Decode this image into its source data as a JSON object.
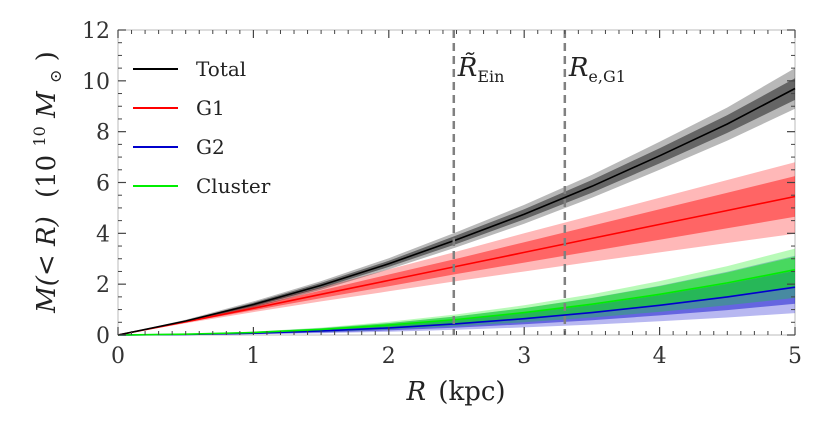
{
  "chart_data": {
    "type": "area",
    "title": "",
    "xlabel": "R (kpc)",
    "xlabel_parts": {
      "var": "R",
      "unit": "(kpc)"
    },
    "ylabel": "M(< R) (10^10 M⊙)",
    "ylabel_parts": {
      "expr": "M(< R)",
      "scale_base": "(10",
      "scale_exp": "10",
      "unit": "M",
      "unit_sub": "⊙",
      "close": ")"
    },
    "xlim": [
      0,
      5
    ],
    "ylim": [
      0,
      12
    ],
    "xticks": [
      0,
      1,
      2,
      3,
      4,
      5
    ],
    "yticks": [
      0,
      2,
      4,
      6,
      8,
      10,
      12
    ],
    "legend_position": "top-left",
    "x": [
      0,
      0.5,
      1,
      1.5,
      2,
      2.5,
      3,
      3.5,
      4,
      4.5,
      5
    ],
    "series": [
      {
        "name": "Total",
        "color": "#000000",
        "median": [
          0,
          0.55,
          1.2,
          1.95,
          2.8,
          3.75,
          4.75,
          5.85,
          7.05,
          8.3,
          9.7
        ],
        "band_inner": {
          "low": [
            0,
            0.53,
            1.13,
            1.85,
            2.68,
            3.58,
            4.55,
            5.6,
            6.75,
            7.95,
            9.25
          ],
          "high": [
            0,
            0.57,
            1.27,
            2.05,
            2.92,
            3.92,
            4.95,
            6.1,
            7.35,
            8.65,
            10.1
          ]
        },
        "band_outer": {
          "low": [
            0,
            0.5,
            1.08,
            1.78,
            2.58,
            3.45,
            4.38,
            5.4,
            6.5,
            7.65,
            8.9
          ],
          "high": [
            0,
            0.6,
            1.32,
            2.12,
            3.02,
            4.05,
            5.12,
            6.3,
            7.6,
            8.95,
            10.5
          ]
        }
      },
      {
        "name": "G1",
        "color": "#ff0000",
        "median": [
          0,
          0.52,
          1.05,
          1.6,
          2.15,
          2.7,
          3.25,
          3.8,
          4.35,
          4.9,
          5.45
        ],
        "band_inner": {
          "low": [
            0,
            0.49,
            0.97,
            1.45,
            1.92,
            2.4,
            2.85,
            3.3,
            3.75,
            4.2,
            4.65
          ],
          "high": [
            0,
            0.55,
            1.13,
            1.75,
            2.38,
            3.0,
            3.65,
            4.3,
            4.95,
            5.6,
            6.25
          ]
        },
        "band_outer": {
          "low": [
            0,
            0.46,
            0.9,
            1.32,
            1.72,
            2.12,
            2.5,
            2.88,
            3.25,
            3.62,
            3.98
          ],
          "high": [
            0,
            0.58,
            1.2,
            1.88,
            2.58,
            3.28,
            4.0,
            4.7,
            5.4,
            6.1,
            6.8
          ]
        }
      },
      {
        "name": "G2",
        "color": "#0000cc",
        "median": [
          0,
          0.02,
          0.07,
          0.16,
          0.28,
          0.44,
          0.64,
          0.88,
          1.17,
          1.5,
          1.88
        ],
        "band_inner": {
          "low": [
            0,
            0.01,
            0.04,
            0.1,
            0.18,
            0.29,
            0.42,
            0.58,
            0.77,
            0.98,
            1.23
          ],
          "high": [
            0,
            0.03,
            0.1,
            0.22,
            0.38,
            0.59,
            0.86,
            1.18,
            1.57,
            2.02,
            2.53
          ]
        },
        "band_outer": {
          "low": [
            0,
            0.01,
            0.03,
            0.07,
            0.13,
            0.21,
            0.3,
            0.41,
            0.54,
            0.69,
            0.86
          ],
          "high": [
            0,
            0.04,
            0.13,
            0.27,
            0.47,
            0.73,
            1.06,
            1.46,
            1.94,
            2.49,
            3.12
          ]
        }
      },
      {
        "name": "Cluster",
        "color": "#00ee00",
        "median": [
          0,
          0.03,
          0.1,
          0.22,
          0.39,
          0.61,
          0.88,
          1.21,
          1.6,
          2.05,
          2.57
        ],
        "band_inner": {
          "low": [
            0,
            0.02,
            0.07,
            0.16,
            0.29,
            0.46,
            0.66,
            0.9,
            1.19,
            1.53,
            1.92
          ],
          "high": [
            0,
            0.04,
            0.12,
            0.26,
            0.47,
            0.73,
            1.06,
            1.45,
            1.92,
            2.46,
            3.08
          ]
        },
        "band_outer": {
          "low": [
            0,
            0.01,
            0.05,
            0.12,
            0.22,
            0.35,
            0.5,
            0.69,
            0.91,
            1.17,
            1.46
          ],
          "high": [
            0,
            0.045,
            0.13,
            0.29,
            0.52,
            0.81,
            1.17,
            1.6,
            2.12,
            2.71,
            3.4
          ]
        }
      }
    ],
    "vlines": [
      {
        "x": 2.48,
        "label": "R̃",
        "label_sub": "Ein"
      },
      {
        "x": 3.3,
        "label": "R",
        "label_sub": "e,G1"
      }
    ]
  }
}
